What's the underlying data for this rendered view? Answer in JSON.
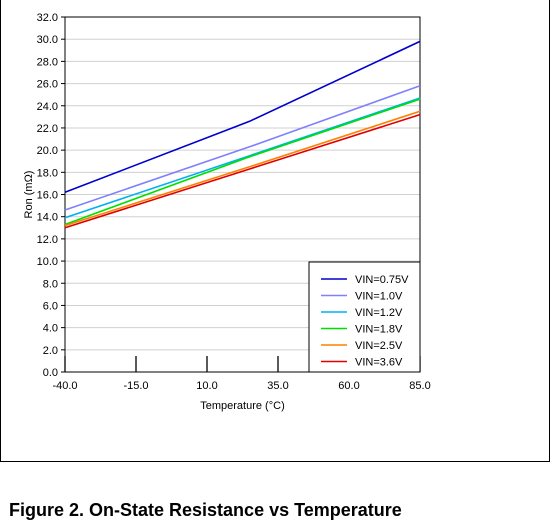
{
  "figure_caption": "Figure 2. On-State Resistance vs Temperature",
  "chart_data": {
    "type": "line",
    "title": "",
    "xlabel": "Temperature (°C)",
    "ylabel": "Ron (mΩ)",
    "xlim": [
      -40,
      85
    ],
    "ylim": [
      0,
      32
    ],
    "xticks": [
      -40,
      -15,
      10,
      35,
      60,
      85
    ],
    "xtick_labels": [
      "-40.0",
      "-15.0",
      "10.0",
      "35.0",
      "60.0",
      "85.0"
    ],
    "yticks": [
      0,
      2,
      4,
      6,
      8,
      10,
      12,
      14,
      16,
      18,
      20,
      22,
      24,
      26,
      28,
      30,
      32
    ],
    "ytick_labels": [
      "0.0",
      "2.0",
      "4.0",
      "6.0",
      "8.0",
      "10.0",
      "12.0",
      "14.0",
      "16.0",
      "18.0",
      "20.0",
      "22.0",
      "24.0",
      "26.0",
      "28.0",
      "30.0",
      "32.0"
    ],
    "grid": "horizontal",
    "legend_position": "bottom-right",
    "x": [
      -40,
      25,
      85
    ],
    "series": [
      {
        "name": "VIN=0.75V",
        "color": "#0000cc",
        "values": [
          16.2,
          22.6,
          29.8
        ]
      },
      {
        "name": "VIN=1.0V",
        "color": "#8080ff",
        "values": [
          14.6,
          20.3,
          25.8
        ]
      },
      {
        "name": "VIN=1.2V",
        "color": "#00b0f0",
        "values": [
          13.9,
          19.5,
          24.7
        ]
      },
      {
        "name": "VIN=1.8V",
        "color": "#00e000",
        "values": [
          13.3,
          19.4,
          24.6
        ]
      },
      {
        "name": "VIN=2.5V",
        "color": "#ff8000",
        "values": [
          13.2,
          18.5,
          23.5
        ]
      },
      {
        "name": "VIN=3.6V",
        "color": "#e00000",
        "values": [
          13.0,
          18.3,
          23.2
        ]
      }
    ]
  }
}
